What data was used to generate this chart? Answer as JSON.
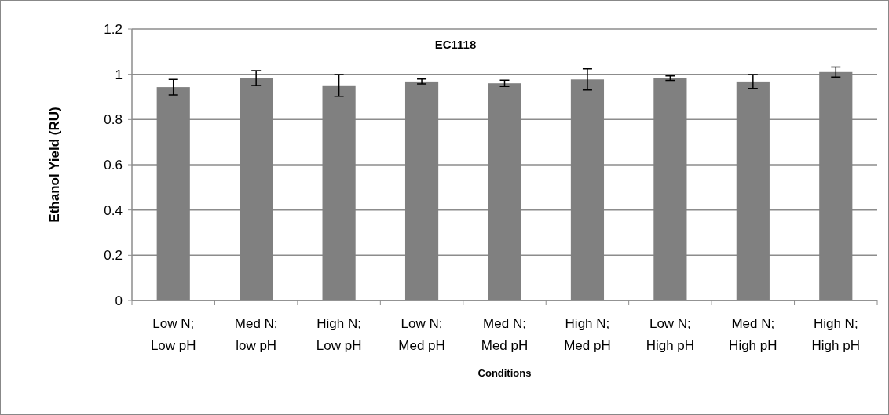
{
  "chart_data": {
    "type": "bar",
    "title": "EC1118",
    "xlabel": "Conditions",
    "ylabel": "Ethanol Yield (RU)",
    "categories": [
      "Low N;\nLow pH",
      "Med N;\nlow pH",
      "High N;\nLow pH",
      "Low N;\nMed pH",
      "Med N;\nMed pH",
      "High N;\nMed pH",
      "Low N;\nHigh pH",
      "Med N;\nHigh pH",
      "High N;\nHigh pH"
    ],
    "values": [
      0.943,
      0.983,
      0.951,
      0.968,
      0.96,
      0.977,
      0.983,
      0.968,
      1.01
    ],
    "errors": [
      0.034,
      0.033,
      0.048,
      0.011,
      0.014,
      0.047,
      0.01,
      0.031,
      0.022
    ],
    "color": "#808080",
    "ylim": [
      0,
      1.2
    ],
    "yticks": [
      0,
      0.2,
      0.4,
      0.6,
      0.8,
      1,
      1.2
    ],
    "grid": "y"
  }
}
